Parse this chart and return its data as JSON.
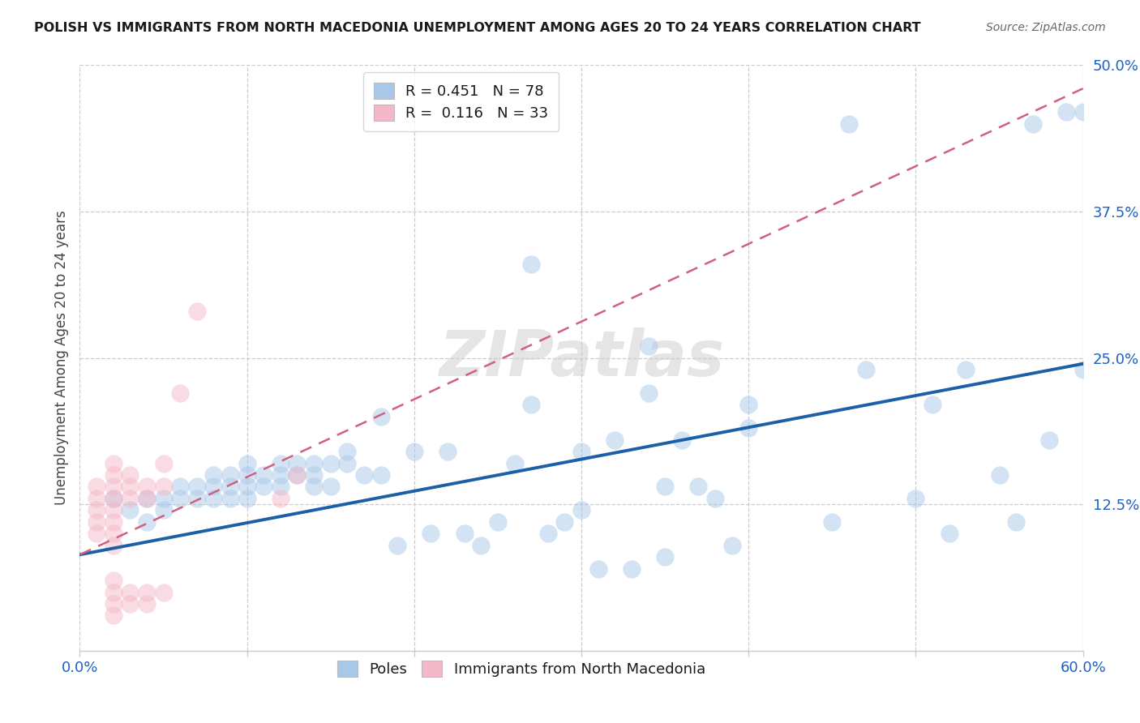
{
  "title": "POLISH VS IMMIGRANTS FROM NORTH MACEDONIA UNEMPLOYMENT AMONG AGES 20 TO 24 YEARS CORRELATION CHART",
  "source": "Source: ZipAtlas.com",
  "ylabel": "Unemployment Among Ages 20 to 24 years",
  "xlabel_poles": "Poles",
  "xlabel_immig": "Immigrants from North Macedonia",
  "xlim": [
    0,
    0.6
  ],
  "ylim": [
    0,
    0.5
  ],
  "xticks": [
    0.0,
    0.1,
    0.2,
    0.3,
    0.4,
    0.5,
    0.6
  ],
  "yticks": [
    0.0,
    0.125,
    0.25,
    0.375,
    0.5
  ],
  "xtick_labels": [
    "0.0%",
    "",
    "",
    "",
    "",
    "",
    "60.0%"
  ],
  "ytick_labels": [
    "",
    "12.5%",
    "25.0%",
    "37.5%",
    "50.0%"
  ],
  "blue_R": 0.451,
  "blue_N": 78,
  "pink_R": 0.116,
  "pink_N": 33,
  "blue_color": "#a8c8e8",
  "pink_color": "#f4b8c8",
  "blue_line_color": "#1a5fa8",
  "pink_line_color": "#d06080",
  "watermark": "ZIPatlas",
  "blue_line_x0": 0.0,
  "blue_line_y0": 0.082,
  "blue_line_x1": 0.6,
  "blue_line_y1": 0.245,
  "pink_line_x0": 0.0,
  "pink_line_y0": 0.082,
  "pink_line_x1": 0.6,
  "pink_line_y1": 0.48,
  "blue_scatter_x": [
    0.02,
    0.03,
    0.04,
    0.04,
    0.05,
    0.05,
    0.06,
    0.06,
    0.07,
    0.07,
    0.08,
    0.08,
    0.08,
    0.09,
    0.09,
    0.09,
    0.1,
    0.1,
    0.1,
    0.1,
    0.11,
    0.11,
    0.12,
    0.12,
    0.12,
    0.13,
    0.13,
    0.14,
    0.14,
    0.14,
    0.15,
    0.15,
    0.16,
    0.16,
    0.17,
    0.18,
    0.18,
    0.19,
    0.2,
    0.21,
    0.22,
    0.23,
    0.24,
    0.25,
    0.26,
    0.27,
    0.28,
    0.29,
    0.3,
    0.3,
    0.31,
    0.32,
    0.33,
    0.34,
    0.35,
    0.35,
    0.36,
    0.37,
    0.38,
    0.39,
    0.4,
    0.4,
    0.45,
    0.46,
    0.47,
    0.5,
    0.51,
    0.52,
    0.53,
    0.55,
    0.56,
    0.57,
    0.58,
    0.59,
    0.6,
    0.6,
    0.34,
    0.27
  ],
  "blue_scatter_y": [
    0.13,
    0.12,
    0.13,
    0.11,
    0.13,
    0.12,
    0.14,
    0.13,
    0.14,
    0.13,
    0.15,
    0.14,
    0.13,
    0.15,
    0.14,
    0.13,
    0.14,
    0.15,
    0.16,
    0.13,
    0.15,
    0.14,
    0.16,
    0.15,
    0.14,
    0.16,
    0.15,
    0.16,
    0.15,
    0.14,
    0.16,
    0.14,
    0.17,
    0.16,
    0.15,
    0.2,
    0.15,
    0.09,
    0.17,
    0.1,
    0.17,
    0.1,
    0.09,
    0.11,
    0.16,
    0.21,
    0.1,
    0.11,
    0.17,
    0.12,
    0.07,
    0.18,
    0.07,
    0.22,
    0.14,
    0.08,
    0.18,
    0.14,
    0.13,
    0.09,
    0.19,
    0.21,
    0.11,
    0.45,
    0.24,
    0.13,
    0.21,
    0.1,
    0.24,
    0.15,
    0.11,
    0.45,
    0.18,
    0.46,
    0.24,
    0.46,
    0.26,
    0.33
  ],
  "pink_scatter_x": [
    0.01,
    0.01,
    0.01,
    0.01,
    0.01,
    0.02,
    0.02,
    0.02,
    0.02,
    0.02,
    0.02,
    0.02,
    0.02,
    0.02,
    0.02,
    0.02,
    0.02,
    0.03,
    0.03,
    0.03,
    0.03,
    0.03,
    0.04,
    0.04,
    0.04,
    0.04,
    0.05,
    0.05,
    0.05,
    0.06,
    0.07,
    0.12,
    0.13
  ],
  "pink_scatter_y": [
    0.13,
    0.12,
    0.11,
    0.1,
    0.14,
    0.14,
    0.13,
    0.12,
    0.11,
    0.1,
    0.09,
    0.06,
    0.05,
    0.04,
    0.03,
    0.15,
    0.16,
    0.15,
    0.14,
    0.13,
    0.05,
    0.04,
    0.14,
    0.13,
    0.05,
    0.04,
    0.16,
    0.14,
    0.05,
    0.22,
    0.29,
    0.13,
    0.15
  ]
}
